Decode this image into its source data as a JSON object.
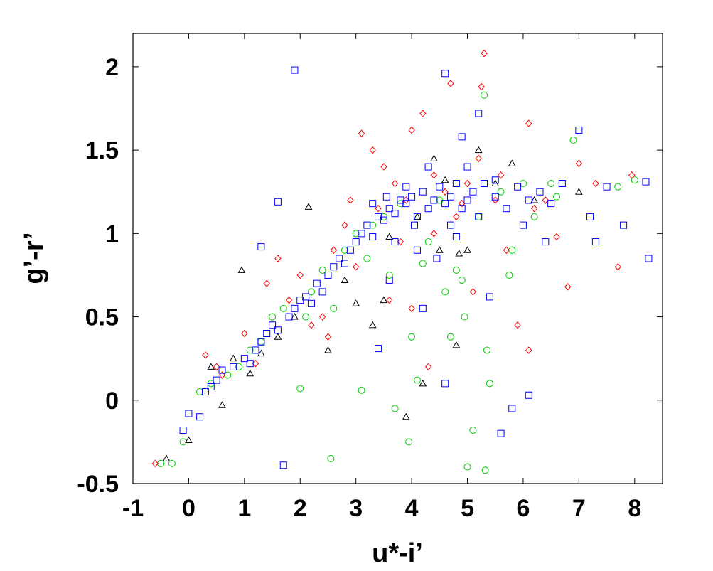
{
  "chart_data": {
    "type": "scatter",
    "title": "",
    "xlabel": "u*-i’",
    "ylabel": "g’-r’",
    "xlim": [
      -1,
      8.5
    ],
    "ylim": [
      -0.5,
      2.2
    ],
    "xticks": [
      "-1",
      "0",
      "1",
      "2",
      "3",
      "4",
      "5",
      "6",
      "7",
      "8"
    ],
    "yticks": [
      "-0.5",
      "0",
      "0.5",
      "1",
      "1.5",
      "2"
    ],
    "grid": false,
    "legend": "none",
    "series": [
      {
        "marker": "square",
        "color": "#0000ff",
        "points": [
          [
            -0.1,
            -0.18
          ],
          [
            0.0,
            -0.08
          ],
          [
            0.2,
            -0.1
          ],
          [
            0.3,
            0.05
          ],
          [
            0.4,
            0.08
          ],
          [
            0.5,
            0.12
          ],
          [
            0.6,
            0.18
          ],
          [
            0.8,
            0.2
          ],
          [
            1.0,
            0.25
          ],
          [
            1.1,
            0.22
          ],
          [
            1.2,
            0.3
          ],
          [
            1.3,
            0.35
          ],
          [
            1.4,
            0.4
          ],
          [
            1.5,
            0.45
          ],
          [
            1.6,
            0.42
          ],
          [
            1.8,
            0.5
          ],
          [
            1.9,
            0.55
          ],
          [
            2.0,
            0.6
          ],
          [
            2.1,
            0.62
          ],
          [
            2.2,
            0.58
          ],
          [
            2.3,
            0.7
          ],
          [
            2.4,
            0.65
          ],
          [
            2.5,
            0.75
          ],
          [
            2.6,
            0.8
          ],
          [
            2.7,
            0.85
          ],
          [
            2.8,
            0.82
          ],
          [
            2.9,
            0.9
          ],
          [
            3.0,
            0.95
          ],
          [
            3.1,
            1.0
          ],
          [
            3.2,
            1.05
          ],
          [
            3.3,
            0.98
          ],
          [
            3.4,
            1.1
          ],
          [
            3.5,
            1.08
          ],
          [
            3.6,
            1.15
          ],
          [
            3.7,
            1.12
          ],
          [
            3.8,
            1.2
          ],
          [
            3.9,
            1.18
          ],
          [
            4.0,
            1.22
          ],
          [
            4.1,
            1.1
          ],
          [
            4.2,
            1.25
          ],
          [
            4.3,
            1.15
          ],
          [
            4.4,
            1.2
          ],
          [
            4.5,
            1.28
          ],
          [
            4.6,
            1.18
          ],
          [
            4.7,
            1.22
          ],
          [
            4.8,
            1.3
          ],
          [
            4.9,
            1.15
          ],
          [
            5.0,
            1.2
          ],
          [
            5.1,
            1.25
          ],
          [
            5.2,
            1.1
          ],
          [
            5.3,
            1.3
          ],
          [
            5.5,
            1.22
          ],
          [
            5.7,
            1.15
          ],
          [
            5.9,
            1.28
          ],
          [
            6.1,
            1.2
          ],
          [
            6.3,
            1.25
          ],
          [
            6.5,
            1.18
          ],
          [
            6.7,
            1.3
          ],
          [
            7.0,
            1.62
          ],
          [
            7.2,
            1.1
          ],
          [
            7.5,
            1.28
          ],
          [
            7.8,
            1.05
          ],
          [
            8.2,
            1.31
          ],
          [
            8.25,
            0.85
          ],
          [
            1.9,
            1.98
          ],
          [
            4.6,
            1.96
          ],
          [
            4.9,
            1.58
          ],
          [
            5.2,
            1.72
          ],
          [
            5.4,
            0.62
          ],
          [
            5.6,
            -0.2
          ],
          [
            5.8,
            -0.05
          ],
          [
            6.1,
            0.03
          ],
          [
            4.2,
            0.55
          ],
          [
            4.6,
            0.1
          ],
          [
            3.4,
            0.31
          ],
          [
            1.7,
            -0.39
          ],
          [
            1.3,
            0.92
          ],
          [
            1.6,
            1.19
          ],
          [
            3.6,
            0.72
          ],
          [
            3.9,
            1.28
          ],
          [
            4.3,
            1.4
          ],
          [
            4.1,
            0.9
          ],
          [
            3.7,
            0.95
          ],
          [
            3.3,
            1.18
          ],
          [
            4.7,
            1.05
          ],
          [
            5.0,
            1.4
          ],
          [
            5.5,
            1.32
          ],
          [
            6.0,
            1.05
          ],
          [
            6.4,
            0.95
          ],
          [
            7.3,
            0.95
          ],
          [
            4.45,
            0.85
          ],
          [
            3.55,
            1.22
          ],
          [
            4.05,
            1.05
          ],
          [
            4.8,
            0.98
          ]
        ]
      },
      {
        "marker": "diamond",
        "color": "#ff0000",
        "points": [
          [
            -0.6,
            -0.38
          ],
          [
            0.3,
            0.27
          ],
          [
            0.6,
            0.15
          ],
          [
            1.0,
            0.4
          ],
          [
            1.4,
            0.7
          ],
          [
            1.6,
            0.85
          ],
          [
            1.8,
            0.6
          ],
          [
            2.0,
            0.75
          ],
          [
            2.2,
            0.45
          ],
          [
            2.4,
            0.5
          ],
          [
            2.6,
            0.9
          ],
          [
            2.8,
            1.05
          ],
          [
            2.9,
            1.2
          ],
          [
            3.0,
            0.8
          ],
          [
            3.1,
            1.6
          ],
          [
            3.3,
            1.5
          ],
          [
            3.5,
            1.4
          ],
          [
            3.7,
            1.3
          ],
          [
            3.9,
            1.2
          ],
          [
            4.0,
            1.62
          ],
          [
            4.2,
            1.72
          ],
          [
            4.4,
            1.35
          ],
          [
            4.6,
            1.25
          ],
          [
            4.7,
            1.9
          ],
          [
            4.8,
            1.1
          ],
          [
            5.0,
            1.3
          ],
          [
            5.2,
            1.45
          ],
          [
            5.3,
            2.08
          ],
          [
            5.5,
            1.2
          ],
          [
            5.7,
            0.9
          ],
          [
            5.9,
            0.45
          ],
          [
            6.1,
            0.3
          ],
          [
            6.1,
            1.66
          ],
          [
            6.4,
            1.2
          ],
          [
            6.6,
            0.98
          ],
          [
            6.8,
            0.68
          ],
          [
            7.0,
            1.42
          ],
          [
            7.3,
            1.3
          ],
          [
            7.7,
            0.8
          ],
          [
            7.95,
            1.35
          ],
          [
            4.3,
            0.2
          ],
          [
            4.0,
            0.55
          ],
          [
            3.6,
            0.6
          ],
          [
            5.1,
            0.65
          ],
          [
            4.4,
            1.0
          ],
          [
            3.8,
            0.95
          ],
          [
            3.4,
            1.15
          ],
          [
            5.6,
            1.35
          ],
          [
            6.2,
            1.15
          ],
          [
            2.5,
            0.38
          ],
          [
            1.2,
            0.22
          ],
          [
            0.5,
            0.2
          ],
          [
            4.9,
            1.18
          ],
          [
            5.25,
            1.88
          ]
        ]
      },
      {
        "marker": "circle",
        "color": "#00cc00",
        "points": [
          [
            -0.5,
            -0.38
          ],
          [
            -0.3,
            -0.38
          ],
          [
            -0.1,
            -0.25
          ],
          [
            0.2,
            0.05
          ],
          [
            0.4,
            0.1
          ],
          [
            0.7,
            0.15
          ],
          [
            0.9,
            0.2
          ],
          [
            1.1,
            0.3
          ],
          [
            1.3,
            0.35
          ],
          [
            1.5,
            0.5
          ],
          [
            1.7,
            0.55
          ],
          [
            2.0,
            0.07
          ],
          [
            2.2,
            0.65
          ],
          [
            2.4,
            0.78
          ],
          [
            2.6,
            0.55
          ],
          [
            2.8,
            0.9
          ],
          [
            3.0,
            1.0
          ],
          [
            3.1,
            0.06
          ],
          [
            3.3,
            1.05
          ],
          [
            3.5,
            1.1
          ],
          [
            3.6,
            0.75
          ],
          [
            3.8,
            1.18
          ],
          [
            3.95,
            -0.25
          ],
          [
            4.0,
            0.38
          ],
          [
            4.1,
            0.12
          ],
          [
            4.3,
            0.95
          ],
          [
            4.5,
            1.2
          ],
          [
            4.6,
            0.65
          ],
          [
            4.8,
            0.78
          ],
          [
            4.95,
            0.5
          ],
          [
            5.0,
            -0.4
          ],
          [
            5.1,
            -0.18
          ],
          [
            5.2,
            1.1
          ],
          [
            5.3,
            1.83
          ],
          [
            5.32,
            -0.42
          ],
          [
            5.4,
            0.1
          ],
          [
            5.6,
            1.25
          ],
          [
            5.8,
            0.9
          ],
          [
            6.0,
            1.3
          ],
          [
            6.2,
            1.1
          ],
          [
            6.5,
            1.3
          ],
          [
            6.9,
            1.56
          ],
          [
            7.7,
            1.28
          ],
          [
            8.0,
            1.32
          ],
          [
            2.55,
            -0.35
          ],
          [
            3.7,
            -0.05
          ],
          [
            4.9,
            0.72
          ],
          [
            5.35,
            0.3
          ],
          [
            4.7,
            0.38
          ],
          [
            4.2,
            0.82
          ],
          [
            5.75,
            0.75
          ],
          [
            6.6,
            1.22
          ],
          [
            3.2,
            0.85
          ],
          [
            2.1,
            0.5
          ]
        ]
      },
      {
        "marker": "triangle",
        "color": "#000000",
        "points": [
          [
            -0.4,
            -0.35
          ],
          [
            0.0,
            -0.24
          ],
          [
            0.4,
            0.2
          ],
          [
            0.6,
            -0.03
          ],
          [
            0.8,
            0.25
          ],
          [
            0.95,
            0.78
          ],
          [
            1.1,
            0.16
          ],
          [
            1.3,
            0.28
          ],
          [
            1.6,
            0.38
          ],
          [
            1.9,
            0.5
          ],
          [
            2.15,
            1.16
          ],
          [
            2.5,
            0.3
          ],
          [
            2.8,
            0.72
          ],
          [
            3.0,
            0.58
          ],
          [
            3.3,
            0.45
          ],
          [
            3.6,
            0.98
          ],
          [
            3.9,
            -0.1
          ],
          [
            4.2,
            0.1
          ],
          [
            4.5,
            0.9
          ],
          [
            4.8,
            0.33
          ],
          [
            5.0,
            0.9
          ],
          [
            5.2,
            1.5
          ],
          [
            5.5,
            1.3
          ],
          [
            5.8,
            1.42
          ],
          [
            6.2,
            1.2
          ],
          [
            7.0,
            1.25
          ],
          [
            4.1,
            1.1
          ],
          [
            4.4,
            1.45
          ],
          [
            4.6,
            1.32
          ],
          [
            3.5,
            0.6
          ],
          [
            4.85,
            0.88
          ]
        ]
      }
    ]
  }
}
